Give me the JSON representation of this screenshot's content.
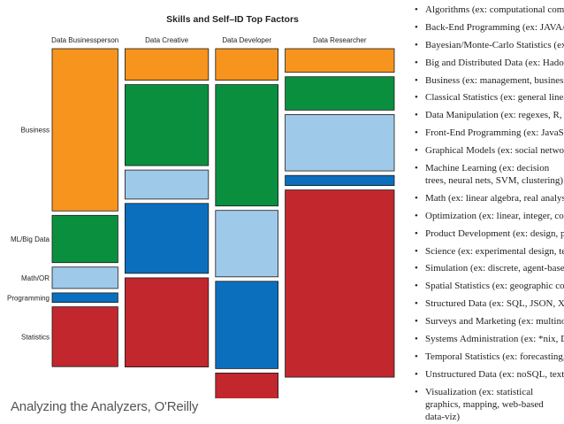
{
  "chart_data": {
    "type": "mosaic",
    "title": "Skills and Self–ID Top Factors",
    "columns": [
      {
        "name": "Data Businessperson",
        "share": 0.205
      },
      {
        "name": "Data Creative",
        "share": 0.26
      },
      {
        "name": "Data Developer",
        "share": 0.195
      },
      {
        "name": "Data Researcher",
        "share": 0.34
      }
    ],
    "rows": [
      "Business",
      "ML/Big Data",
      "Math/OR",
      "Programming",
      "Statistics"
    ],
    "row_colors": {
      "Business": "#f7941d",
      "ML/Big Data": "#0a8f3f",
      "Math/OR": "#9fc9e9",
      "Programming": "#0b6fbd",
      "Statistics": "#c1272d"
    },
    "series": [
      {
        "name": "Data Businessperson",
        "values": {
          "Business": 0.515,
          "ML/Big Data": 0.15,
          "Math/OR": 0.068,
          "Programming": 0.03,
          "Statistics": 0.19
        }
      },
      {
        "name": "Data Creative",
        "values": {
          "Business": 0.1,
          "ML/Big Data": 0.257,
          "Math/OR": 0.092,
          "Programming": 0.222,
          "Statistics": 0.283
        }
      },
      {
        "name": "Data Developer",
        "values": {
          "Business": 0.1,
          "ML/Big Data": 0.385,
          "Math/OR": 0.211,
          "Programming": 0.277,
          "Statistics": 0.104
        }
      },
      {
        "name": "Data Researcher",
        "values": {
          "Business": 0.075,
          "ML/Big Data": 0.106,
          "Math/OR": 0.179,
          "Programming": 0.032,
          "Statistics": 0.594
        }
      }
    ]
  },
  "caption": "Analyzing the Analyzers, O'Reilly",
  "factors": [
    "Algorithms (ex: computational complexity, CS theory)",
    "Back-End Programming (ex: JAVA/Rails/Objective C)",
    "Bayesian/Monte-Carlo Statistics (ex: MCMC, BUGS)",
    "Big and Distributed Data (ex: Hadoop, Map/Reduce)",
    "Business (ex: management, business development, budgeting)",
    "Classical Statistics (ex: general linear model, ANOVA)",
    "Data Manipulation (ex: regexes, R, SAS, web scraping)",
    "Front-End Programming (ex: JavaScript, HTML, CSS)",
    "Graphical Models (ex: social networks, Bayes networks)",
    "Machine Learning (ex: decision trees, neural nets, SVM, clustering)",
    "Math (ex: linear algebra, real analysis, calculus)",
    "Optimization (ex: linear, integer, convex, global)",
    "Product Development (ex: design, project management)",
    "Science (ex: experimental design, technical writing/publishing)",
    "Simulation (ex: discrete, agent-based, continuous)",
    "Spatial Statistics (ex: geographic covariates, GIS)",
    "Structured Data (ex: SQL, JSON, XML)",
    "Surveys and Marketing (ex: multinomial modeling)",
    "Systems Administration (ex: *nix, DBA, cloud tech.)",
    "Temporal Statistics (ex: forecasting, time-series analysis)",
    "Unstructured Data (ex: noSQL, text mining)",
    "Visualization (ex: statistical graphics, mapping, web-based data‑viz)"
  ]
}
